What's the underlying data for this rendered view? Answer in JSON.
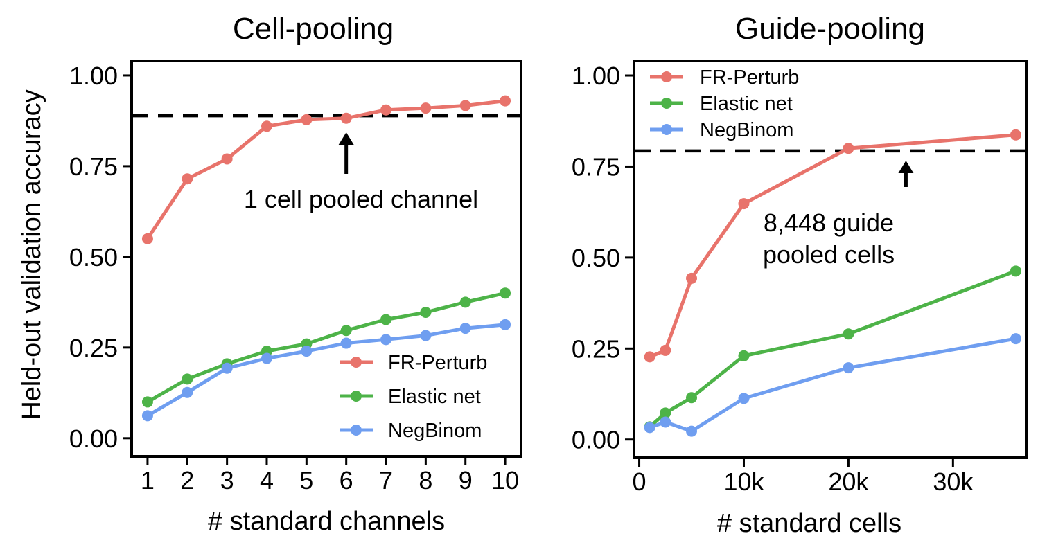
{
  "figure": {
    "ylabel": "Held-out validation accuracy"
  },
  "chart_data": [
    {
      "type": "line",
      "title": "Cell-pooling",
      "xlabel": "# standard channels",
      "ylabel": "Held-out validation accuracy",
      "xlim": [
        0.6,
        10.4
      ],
      "ylim": [
        -0.05,
        1.04
      ],
      "x": [
        1,
        2,
        3,
        4,
        5,
        6,
        7,
        8,
        9,
        10
      ],
      "xticks": [
        1,
        2,
        3,
        4,
        5,
        6,
        7,
        8,
        9,
        10
      ],
      "xtick_labels": [
        "1",
        "2",
        "3",
        "4",
        "5",
        "6",
        "7",
        "8",
        "9",
        "10"
      ],
      "yticks": [
        0.0,
        0.25,
        0.5,
        0.75,
        1.0
      ],
      "ytick_labels": [
        "0.00",
        "0.25",
        "0.50",
        "0.75",
        "1.00"
      ],
      "series": [
        {
          "name": "FR-Perturb",
          "color": "#e8736b",
          "values": [
            0.55,
            0.715,
            0.77,
            0.86,
            0.878,
            0.882,
            0.905,
            0.91,
            0.917,
            0.93
          ]
        },
        {
          "name": "Elastic net",
          "color": "#4db348",
          "values": [
            0.1,
            0.163,
            0.205,
            0.24,
            0.26,
            0.297,
            0.327,
            0.347,
            0.375,
            0.4
          ]
        },
        {
          "name": "NegBinom",
          "color": "#6f9ef0",
          "values": [
            0.062,
            0.126,
            0.193,
            0.22,
            0.24,
            0.262,
            0.272,
            0.283,
            0.303,
            0.313
          ]
        }
      ],
      "reference_line": {
        "y": 0.889,
        "style": "dashed",
        "color": "#000000"
      },
      "annotation": {
        "lines": [
          "1 cell pooled channel"
        ],
        "arrow_x": 6
      },
      "legend": {
        "position": "bottom-right",
        "entries": [
          "FR-Perturb",
          "Elastic net",
          "NegBinom"
        ]
      },
      "grid": false
    },
    {
      "type": "line",
      "title": "Guide-pooling",
      "xlabel": "# standard cells",
      "ylabel": "",
      "xlim": [
        -500,
        37000
      ],
      "ylim": [
        -0.05,
        1.04
      ],
      "x": [
        1000,
        2500,
        5000,
        10000,
        20000,
        36000
      ],
      "xticks": [
        0,
        10000,
        20000,
        30000
      ],
      "xtick_labels": [
        "0",
        "10k",
        "20k",
        "30k"
      ],
      "yticks": [
        0.0,
        0.25,
        0.5,
        0.75,
        1.0
      ],
      "ytick_labels": [
        "0.00",
        "0.25",
        "0.50",
        "0.75",
        "1.00"
      ],
      "series": [
        {
          "name": "FR-Perturb",
          "color": "#e8736b",
          "values": [
            0.227,
            0.245,
            0.443,
            0.648,
            0.8,
            0.837
          ]
        },
        {
          "name": "Elastic net",
          "color": "#4db348",
          "values": [
            0.035,
            0.073,
            0.115,
            0.23,
            0.29,
            0.463
          ]
        },
        {
          "name": "NegBinom",
          "color": "#6f9ef0",
          "values": [
            0.033,
            0.048,
            0.023,
            0.113,
            0.197,
            0.277
          ]
        }
      ],
      "reference_line": {
        "y": 0.793,
        "style": "dashed",
        "color": "#000000"
      },
      "annotation": {
        "lines": [
          "8,448 guide",
          "pooled cells"
        ],
        "arrow_x": 25500
      },
      "legend": {
        "position": "top-left",
        "entries": [
          "FR-Perturb",
          "Elastic net",
          "NegBinom"
        ]
      },
      "grid": false
    }
  ]
}
